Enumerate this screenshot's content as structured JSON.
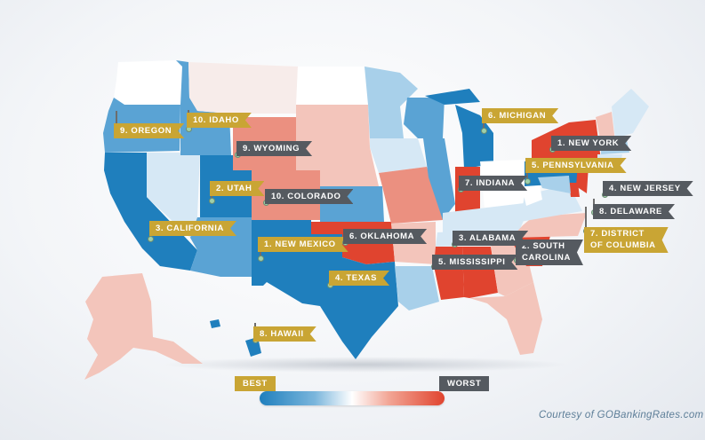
{
  "colors": {
    "best": "#1f7fbd",
    "good": "#5aa3d4",
    "light_blue": "#a8d0ea",
    "pale_blue": "#d6e8f5",
    "neutral": "#f7ecea",
    "pale_red": "#f3c5bb",
    "mid_red": "#eb9080",
    "worst": "#e0442f",
    "flag_good": "#c9a534",
    "flag_bad": "#555a60"
  },
  "rankings": {
    "best": [
      {
        "rank": 1,
        "state": "New Mexico",
        "label": "1. NEW MEXICO"
      },
      {
        "rank": 2,
        "state": "Utah",
        "label": "2. UTAH"
      },
      {
        "rank": 3,
        "state": "California",
        "label": "3. CALIFORNIA"
      },
      {
        "rank": 4,
        "state": "Texas",
        "label": "4. TEXAS"
      },
      {
        "rank": 5,
        "state": "Pennsylvania",
        "label": "5. PENNSYLVANIA"
      },
      {
        "rank": 6,
        "state": "Michigan",
        "label": "6. MICHIGAN"
      },
      {
        "rank": 7,
        "state": "District of Columbia",
        "label_line1": "7. DISTRICT",
        "label_line2": "OF COLUMBIA"
      },
      {
        "rank": 8,
        "state": "Hawaii",
        "label": "8. HAWAII"
      },
      {
        "rank": 9,
        "state": "Oregon",
        "label": "9. OREGON"
      },
      {
        "rank": 10,
        "state": "Idaho",
        "label": "10. IDAHO"
      }
    ],
    "worst": [
      {
        "rank": 1,
        "state": "New York",
        "label": "1. NEW YORK"
      },
      {
        "rank": 2,
        "state": "South Carolina",
        "label_line1": "2. SOUTH",
        "label_line2": "CAROLINA"
      },
      {
        "rank": 3,
        "state": "Alabama",
        "label": "3. ALABAMA"
      },
      {
        "rank": 4,
        "state": "New Jersey",
        "label": "4. NEW JERSEY"
      },
      {
        "rank": 5,
        "state": "Mississippi",
        "label": "5. MISSISSIPPI"
      },
      {
        "rank": 6,
        "state": "Oklahoma",
        "label": "6. OKLAHOMA"
      },
      {
        "rank": 7,
        "state": "Indiana",
        "label": "7. INDIANA"
      },
      {
        "rank": 8,
        "state": "Delaware",
        "label": "8. DELAWARE"
      },
      {
        "rank": 9,
        "state": "Wyoming",
        "label": "9. WYOMING"
      },
      {
        "rank": 10,
        "state": "Colorado",
        "label": "10. COLORADO"
      }
    ]
  },
  "legend": {
    "best_label": "BEST",
    "worst_label": "WORST"
  },
  "credit": "Courtesy of GOBankingRates.com"
}
